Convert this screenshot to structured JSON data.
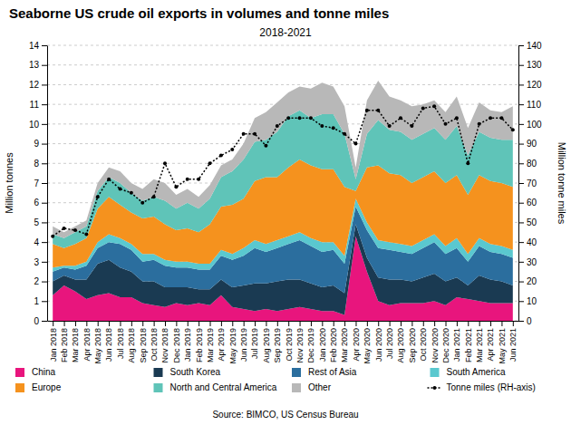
{
  "chart_data": {
    "type": "area",
    "stacked": true,
    "title": "Seaborne US crude oil exports in volumes and tonne miles",
    "subtitle": "2018-2021",
    "annotations": [
      "Source: BIMCO, US Census Bureau"
    ],
    "y_label": "Million tonnes",
    "y2_label": "Million tonne miles",
    "ylim": [
      0,
      14
    ],
    "yticks": [
      0,
      1,
      2,
      3,
      4,
      5,
      6,
      7,
      8,
      9,
      10,
      11,
      12,
      13,
      14
    ],
    "y2lim": [
      0,
      140
    ],
    "y2ticks": [
      0,
      10,
      20,
      30,
      40,
      50,
      60,
      70,
      80,
      90,
      100,
      110,
      120,
      130,
      140
    ],
    "grid": true,
    "legend": "bottom",
    "categories": [
      "Jan 2018",
      "Feb 2018",
      "Mar 2018",
      "Apr 2018",
      "May 2018",
      "Jun 2018",
      "Jul 2018",
      "Aug 2018",
      "Sep 2018",
      "Oct 2018",
      "Nov 2018",
      "Dec 2018",
      "Jan 2019",
      "Feb 2019",
      "Mar 2019",
      "Apr 2019",
      "May 2019",
      "Jun 2019",
      "Jul 2019",
      "Aug 2019",
      "Sep 2019",
      "Oct 2019",
      "Nov 2019",
      "Dec 2019",
      "Jan 2020",
      "Feb 2020",
      "Mar 2020",
      "Apr 2020",
      "May 2020",
      "Jun 2020",
      "Jul 2020",
      "Aug 2020",
      "Sep 2020",
      "Oct 2020",
      "Nov 2020",
      "Dec 2020",
      "Jan 2021",
      "Feb 2021",
      "Mar 2021",
      "Apr 2021",
      "May 2021",
      "Jun 2021"
    ],
    "series": [
      {
        "name": "China",
        "color": "#e8157d",
        "values": [
          1.3,
          1.8,
          1.5,
          1.1,
          1.3,
          1.4,
          1.2,
          1.2,
          0.9,
          0.8,
          0.7,
          0.9,
          0.8,
          0.9,
          0.8,
          1.3,
          0.7,
          0.6,
          0.5,
          0.6,
          0.5,
          0.6,
          0.7,
          0.6,
          0.5,
          0.5,
          0.3,
          4.3,
          2.5,
          1.0,
          0.8,
          0.9,
          0.9,
          0.9,
          1.0,
          0.8,
          1.2,
          1.1,
          1.0,
          0.9,
          0.9,
          0.9
        ]
      },
      {
        "name": "South Korea",
        "color": "#1a3a52",
        "values": [
          0.7,
          0.5,
          0.6,
          1.0,
          1.6,
          1.7,
          1.5,
          1.3,
          1.1,
          1.2,
          1.0,
          0.8,
          0.9,
          0.7,
          0.8,
          0.8,
          1.0,
          1.2,
          1.4,
          1.3,
          1.5,
          1.5,
          1.4,
          1.3,
          1.2,
          1.3,
          1.1,
          0.6,
          0.7,
          1.2,
          1.3,
          1.2,
          1.1,
          1.3,
          1.4,
          1.2,
          1.0,
          0.7,
          1.3,
          1.2,
          1.1,
          0.9
        ]
      },
      {
        "name": "Rest of Asia",
        "color": "#2b6e9e",
        "values": [
          0.5,
          0.4,
          0.5,
          0.7,
          0.8,
          0.9,
          1.2,
          1.1,
          1.0,
          1.1,
          1.1,
          1.0,
          1.0,
          1.0,
          1.0,
          1.2,
          1.4,
          1.5,
          1.8,
          1.6,
          1.7,
          1.8,
          2.0,
          1.9,
          1.8,
          1.8,
          1.5,
          0.9,
          1.4,
          1.5,
          1.5,
          1.4,
          1.4,
          1.5,
          1.6,
          1.4,
          1.5,
          1.2,
          1.5,
          1.4,
          1.4,
          1.4
        ]
      },
      {
        "name": "South America",
        "color": "#5ac8cf",
        "values": [
          0.2,
          0.1,
          0.2,
          0.2,
          0.3,
          0.4,
          0.3,
          0.3,
          0.4,
          0.3,
          0.3,
          0.3,
          0.3,
          0.3,
          0.3,
          0.3,
          0.3,
          0.4,
          0.4,
          0.4,
          0.4,
          0.4,
          0.4,
          0.4,
          0.5,
          0.4,
          0.4,
          0.4,
          0.4,
          0.4,
          0.4,
          0.4,
          0.4,
          0.4,
          0.4,
          0.4,
          0.5,
          0.4,
          0.4,
          0.4,
          0.4,
          0.4
        ]
      },
      {
        "name": "Europe",
        "color": "#f5921e",
        "values": [
          1.2,
          0.9,
          1.1,
          1.2,
          1.7,
          1.9,
          1.7,
          1.6,
          1.8,
          1.9,
          1.8,
          1.6,
          1.7,
          1.6,
          2.0,
          2.2,
          2.5,
          2.5,
          3.0,
          3.4,
          3.2,
          3.5,
          3.7,
          3.7,
          3.7,
          3.7,
          3.5,
          0.4,
          2.8,
          3.8,
          3.5,
          3.5,
          3.2,
          3.2,
          3.2,
          3.2,
          3.2,
          3.0,
          3.2,
          3.2,
          3.2,
          3.2
        ]
      },
      {
        "name": "North and Central America",
        "color": "#5fc4b8",
        "values": [
          0.5,
          0.5,
          0.6,
          0.6,
          0.9,
          1.0,
          1.1,
          1.0,
          0.9,
          1.0,
          1.2,
          1.1,
          1.3,
          1.2,
          1.3,
          1.5,
          1.7,
          2.0,
          2.0,
          1.9,
          2.3,
          2.6,
          2.5,
          2.4,
          2.8,
          2.8,
          2.7,
          0.6,
          1.7,
          2.3,
          2.2,
          2.2,
          2.2,
          2.2,
          2.2,
          2.2,
          2.5,
          2.0,
          2.2,
          2.2,
          2.2,
          2.4
        ]
      },
      {
        "name": "Other",
        "color": "#b8b8b8",
        "values": [
          0.4,
          0.3,
          0.3,
          0.3,
          0.4,
          0.5,
          0.6,
          0.5,
          0.6,
          0.9,
          0.9,
          0.7,
          0.7,
          0.6,
          0.7,
          0.6,
          0.6,
          0.8,
          1.2,
          1.4,
          1.5,
          1.2,
          1.2,
          1.5,
          1.6,
          1.4,
          1.4,
          0.6,
          1.7,
          2.0,
          1.7,
          1.6,
          1.7,
          1.5,
          1.4,
          1.4,
          1.5,
          1.4,
          1.5,
          1.4,
          1.4,
          1.7
        ]
      },
      {
        "name": "Tonne miles (RH-axis)",
        "type": "line",
        "axis": "y2",
        "color": "#000000",
        "marker": "circle",
        "line_style": "dotted",
        "values": [
          43,
          47,
          46,
          44,
          63,
          72,
          67,
          65,
          60,
          63,
          80,
          68,
          72,
          72,
          80,
          84,
          87,
          95,
          95,
          89,
          99,
          103,
          103,
          103,
          99,
          98,
          95,
          90,
          107,
          107,
          99,
          103,
          99,
          108,
          109,
          100,
          103,
          80,
          100,
          103,
          103,
          97
        ]
      }
    ]
  }
}
